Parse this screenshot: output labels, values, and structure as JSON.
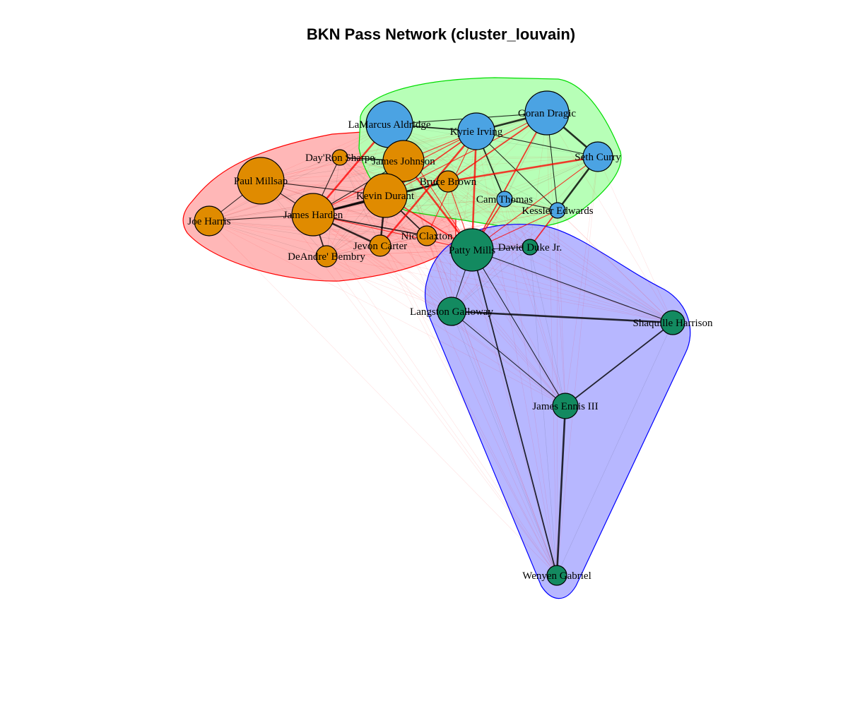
{
  "title": "BKN Pass Network (cluster_louvain)",
  "colors": {
    "orange": "#E08B00",
    "blue": "#4BA3E3",
    "green": "#138A60",
    "hull_red_fill": "#FFB3B3",
    "hull_red_stroke": "#FF0000",
    "hull_green_fill": "#B3FFB3",
    "hull_green_stroke": "#00DD00",
    "hull_blue_fill": "#B3B3FF",
    "hull_blue_stroke": "#0000FF",
    "edge_between": "#FF0000",
    "edge_within": "#000000"
  },
  "chart_data": {
    "type": "network",
    "communities": [
      {
        "id": "red-hull",
        "color": "orange",
        "members": [
          "Paul Millsap",
          "Joe Harris",
          "James Harden",
          "DeAndre' Bembry",
          "Jevon Carter",
          "Kevin Durant",
          "James Johnson",
          "Day'Ron Sharpe",
          "Bruce Brown",
          "Nic Claxton"
        ]
      },
      {
        "id": "green-hull",
        "color": "blue",
        "members": [
          "LaMarcus Aldridge",
          "Kyrie Irving",
          "Goran Dragic",
          "Seth Curry",
          "Cam Thomas",
          "Kessler Edwards"
        ]
      },
      {
        "id": "blue-hull",
        "color": "green",
        "members": [
          "Patty Mills",
          "David Duke Jr.",
          "Langston Galloway",
          "Shaquille Harrison",
          "James Ennis III",
          "Wenyen Gabriel"
        ]
      }
    ],
    "nodes": [
      {
        "name": "LaMarcus Aldridge",
        "group": "blue"
      },
      {
        "name": "Kyrie Irving",
        "group": "blue"
      },
      {
        "name": "Goran Dragic",
        "group": "blue"
      },
      {
        "name": "Seth Curry",
        "group": "blue"
      },
      {
        "name": "Cam Thomas",
        "group": "blue"
      },
      {
        "name": "Kessler Edwards",
        "group": "blue"
      },
      {
        "name": "Day'Ron Sharpe",
        "group": "orange"
      },
      {
        "name": "James Johnson",
        "group": "orange"
      },
      {
        "name": "Paul Millsap",
        "group": "orange"
      },
      {
        "name": "Bruce Brown",
        "group": "orange"
      },
      {
        "name": "Kevin Durant",
        "group": "orange"
      },
      {
        "name": "James Harden",
        "group": "orange"
      },
      {
        "name": "Joe Harris",
        "group": "orange"
      },
      {
        "name": "Nic Claxton",
        "group": "orange"
      },
      {
        "name": "Jevon Carter",
        "group": "orange"
      },
      {
        "name": "DeAndre' Bembry",
        "group": "orange"
      },
      {
        "name": "Patty Mills",
        "group": "green"
      },
      {
        "name": "David Duke Jr.",
        "group": "green"
      },
      {
        "name": "Langston Galloway",
        "group": "green"
      },
      {
        "name": "Shaquille Harrison",
        "group": "green"
      },
      {
        "name": "James Ennis III",
        "group": "green"
      },
      {
        "name": "Wenyen Gabriel",
        "group": "green"
      }
    ],
    "edges": [
      [
        "James Harden",
        "Kevin Durant"
      ],
      [
        "James Harden",
        "Paul Millsap"
      ],
      [
        "James Harden",
        "Joe Harris"
      ],
      [
        "James Harden",
        "DeAndre' Bembry"
      ],
      [
        "James Harden",
        "Jevon Carter"
      ],
      [
        "James Harden",
        "James Johnson"
      ],
      [
        "James Harden",
        "Nic Claxton"
      ],
      [
        "James Harden",
        "Day'Ron Sharpe"
      ],
      [
        "James Harden",
        "Bruce Brown"
      ],
      [
        "Kevin Durant",
        "Nic Claxton"
      ],
      [
        "Kevin Durant",
        "Bruce Brown"
      ],
      [
        "Kevin Durant",
        "James Johnson"
      ],
      [
        "Kevin Durant",
        "Jevon Carter"
      ],
      [
        "Paul Millsap",
        "Joe Harris"
      ],
      [
        "Paul Millsap",
        "Kevin Durant"
      ],
      [
        "James Johnson",
        "Day'Ron Sharpe"
      ],
      [
        "Kyrie Irving",
        "Goran Dragic"
      ],
      [
        "Kyrie Irving",
        "Seth Curry"
      ],
      [
        "Kyrie Irving",
        "Cam Thomas"
      ],
      [
        "Kyrie Irving",
        "Kessler Edwards"
      ],
      [
        "Goran Dragic",
        "Seth Curry"
      ],
      [
        "LaMarcus Aldridge",
        "Kyrie Irving"
      ],
      [
        "LaMarcus Aldridge",
        "Goran Dragic"
      ],
      [
        "Cam Thomas",
        "Kessler Edwards"
      ],
      [
        "Seth Curry",
        "Kessler Edwards"
      ],
      [
        "Goran Dragic",
        "Kessler Edwards"
      ],
      [
        "James Harden",
        "Kyrie Irving"
      ],
      [
        "Kevin Durant",
        "Kyrie Irving"
      ],
      [
        "James Harden",
        "LaMarcus Aldridge"
      ],
      [
        "Kevin Durant",
        "Goran Dragic"
      ],
      [
        "Patty Mills",
        "Kevin Durant"
      ],
      [
        "Patty Mills",
        "James Harden"
      ],
      [
        "Patty Mills",
        "Kyrie Irving"
      ],
      [
        "Patty Mills",
        "Goran Dragic"
      ],
      [
        "Patty Mills",
        "Seth Curry"
      ],
      [
        "Patty Mills",
        "LaMarcus Aldridge"
      ],
      [
        "Patty Mills",
        "James Johnson"
      ],
      [
        "Patty Mills",
        "Bruce Brown"
      ],
      [
        "James Johnson",
        "Kyrie Irving"
      ],
      [
        "Bruce Brown",
        "Goran Dragic"
      ],
      [
        "Bruce Brown",
        "Seth Curry"
      ],
      [
        "Nic Claxton",
        "Kyrie Irving"
      ],
      [
        "Patty Mills",
        "Cam Thomas"
      ],
      [
        "Patty Mills",
        "Kessler Edwards"
      ],
      [
        "Jevon Carter",
        "Kyrie Irving"
      ],
      [
        "David Duke Jr.",
        "Kessler Edwards"
      ],
      [
        "Patty Mills",
        "David Duke Jr."
      ],
      [
        "Patty Mills",
        "Langston Galloway"
      ],
      [
        "Langston Galloway",
        "Shaquille Harrison"
      ],
      [
        "Patty Mills",
        "Shaquille Harrison"
      ],
      [
        "James Ennis III",
        "Langston Galloway"
      ],
      [
        "James Ennis III",
        "Shaquille Harrison"
      ],
      [
        "Wenyen Gabriel",
        "James Ennis III"
      ],
      [
        "Patty Mills",
        "James Ennis III"
      ],
      [
        "Wenyen Gabriel",
        "Patty Mills"
      ]
    ]
  }
}
